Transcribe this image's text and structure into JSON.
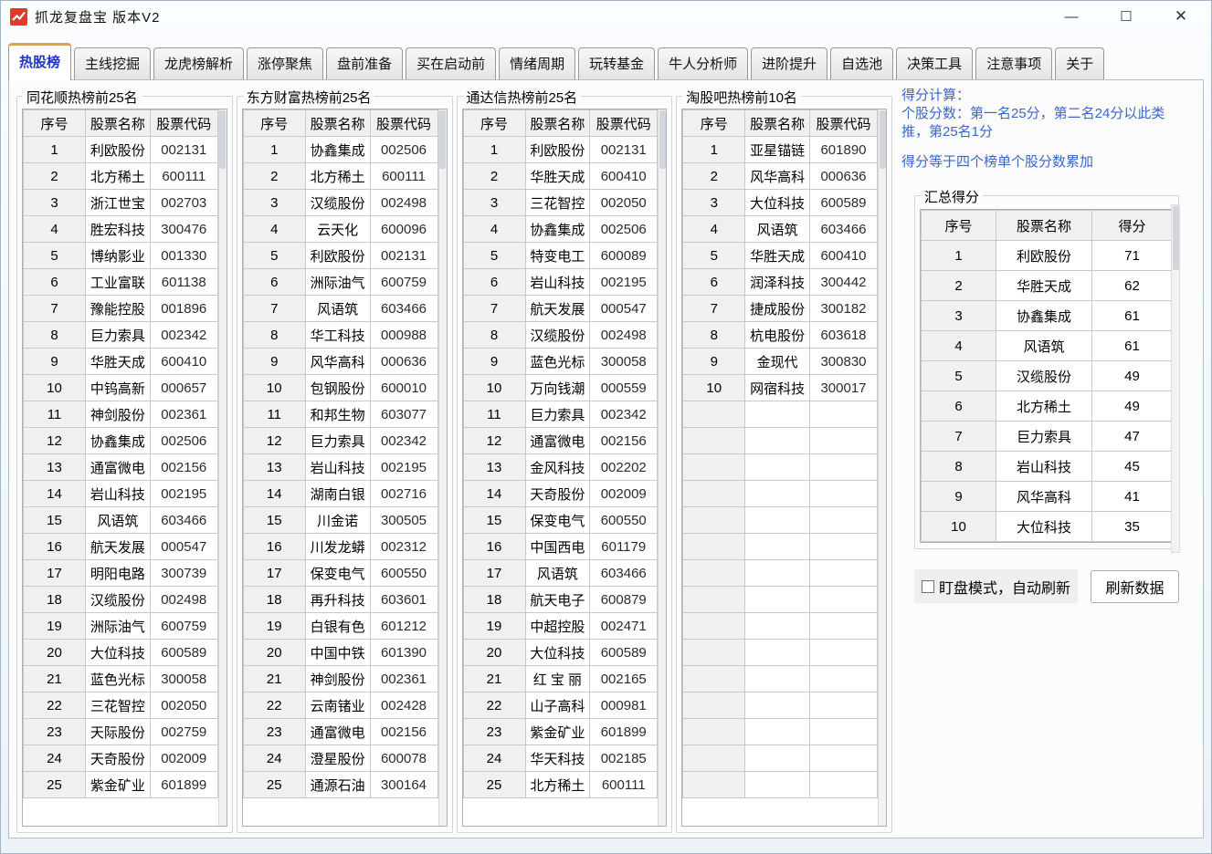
{
  "window": {
    "title": "抓龙复盘宝   版本V2",
    "controls": {
      "minimize": "—",
      "maximize": "☐",
      "close": "✕"
    }
  },
  "tabs": [
    {
      "label": "热股榜",
      "active": true
    },
    {
      "label": "主线挖掘",
      "active": false
    },
    {
      "label": "龙虎榜解析",
      "active": false
    },
    {
      "label": "涨停聚焦",
      "active": false
    },
    {
      "label": "盘前准备",
      "active": false
    },
    {
      "label": "买在启动前",
      "active": false
    },
    {
      "label": "情绪周期",
      "active": false
    },
    {
      "label": "玩转基金",
      "active": false
    },
    {
      "label": "牛人分析师",
      "active": false
    },
    {
      "label": "进阶提升",
      "active": false
    },
    {
      "label": "自选池",
      "active": false
    },
    {
      "label": "决策工具",
      "active": false
    },
    {
      "label": "注意事项",
      "active": false
    },
    {
      "label": "关于",
      "active": false
    }
  ],
  "boards": [
    {
      "title": "同花顺热榜前25名",
      "headers": [
        "序号",
        "股票名称",
        "股票代码"
      ],
      "row_slots": 25,
      "rows": [
        [
          "1",
          "利欧股份",
          "002131"
        ],
        [
          "2",
          "北方稀土",
          "600111"
        ],
        [
          "3",
          "浙江世宝",
          "002703"
        ],
        [
          "4",
          "胜宏科技",
          "300476"
        ],
        [
          "5",
          "博纳影业",
          "001330"
        ],
        [
          "6",
          "工业富联",
          "601138"
        ],
        [
          "7",
          "豫能控股",
          "001896"
        ],
        [
          "8",
          "巨力索具",
          "002342"
        ],
        [
          "9",
          "华胜天成",
          "600410"
        ],
        [
          "10",
          "中钨高新",
          "000657"
        ],
        [
          "11",
          "神剑股份",
          "002361"
        ],
        [
          "12",
          "协鑫集成",
          "002506"
        ],
        [
          "13",
          "通富微电",
          "002156"
        ],
        [
          "14",
          "岩山科技",
          "002195"
        ],
        [
          "15",
          "风语筑",
          "603466"
        ],
        [
          "16",
          "航天发展",
          "000547"
        ],
        [
          "17",
          "明阳电路",
          "300739"
        ],
        [
          "18",
          "汉缆股份",
          "002498"
        ],
        [
          "19",
          "洲际油气",
          "600759"
        ],
        [
          "20",
          "大位科技",
          "600589"
        ],
        [
          "21",
          "蓝色光标",
          "300058"
        ],
        [
          "22",
          "三花智控",
          "002050"
        ],
        [
          "23",
          "天际股份",
          "002759"
        ],
        [
          "24",
          "天奇股份",
          "002009"
        ],
        [
          "25",
          "紫金矿业",
          "601899"
        ]
      ]
    },
    {
      "title": "东方财富热榜前25名",
      "headers": [
        "序号",
        "股票名称",
        "股票代码"
      ],
      "row_slots": 25,
      "rows": [
        [
          "1",
          "协鑫集成",
          "002506"
        ],
        [
          "2",
          "北方稀土",
          "600111"
        ],
        [
          "3",
          "汉缆股份",
          "002498"
        ],
        [
          "4",
          "云天化",
          "600096"
        ],
        [
          "5",
          "利欧股份",
          "002131"
        ],
        [
          "6",
          "洲际油气",
          "600759"
        ],
        [
          "7",
          "风语筑",
          "603466"
        ],
        [
          "8",
          "华工科技",
          "000988"
        ],
        [
          "9",
          "风华高科",
          "000636"
        ],
        [
          "10",
          "包钢股份",
          "600010"
        ],
        [
          "11",
          "和邦生物",
          "603077"
        ],
        [
          "12",
          "巨力索具",
          "002342"
        ],
        [
          "13",
          "岩山科技",
          "002195"
        ],
        [
          "14",
          "湖南白银",
          "002716"
        ],
        [
          "15",
          "川金诺",
          "300505"
        ],
        [
          "16",
          "川发龙蟒",
          "002312"
        ],
        [
          "17",
          "保变电气",
          "600550"
        ],
        [
          "18",
          "再升科技",
          "603601"
        ],
        [
          "19",
          "白银有色",
          "601212"
        ],
        [
          "20",
          "中国中铁",
          "601390"
        ],
        [
          "21",
          "神剑股份",
          "002361"
        ],
        [
          "22",
          "云南锗业",
          "002428"
        ],
        [
          "23",
          "通富微电",
          "002156"
        ],
        [
          "24",
          "澄星股份",
          "600078"
        ],
        [
          "25",
          "通源石油",
          "300164"
        ]
      ]
    },
    {
      "title": "通达信热榜前25名",
      "headers": [
        "序号",
        "股票名称",
        "股票代码"
      ],
      "row_slots": 25,
      "rows": [
        [
          "1",
          "利欧股份",
          "002131"
        ],
        [
          "2",
          "华胜天成",
          "600410"
        ],
        [
          "3",
          "三花智控",
          "002050"
        ],
        [
          "4",
          "协鑫集成",
          "002506"
        ],
        [
          "5",
          "特变电工",
          "600089"
        ],
        [
          "6",
          "岩山科技",
          "002195"
        ],
        [
          "7",
          "航天发展",
          "000547"
        ],
        [
          "8",
          "汉缆股份",
          "002498"
        ],
        [
          "9",
          "蓝色光标",
          "300058"
        ],
        [
          "10",
          "万向钱潮",
          "000559"
        ],
        [
          "11",
          "巨力索具",
          "002342"
        ],
        [
          "12",
          "通富微电",
          "002156"
        ],
        [
          "13",
          "金风科技",
          "002202"
        ],
        [
          "14",
          "天奇股份",
          "002009"
        ],
        [
          "15",
          "保变电气",
          "600550"
        ],
        [
          "16",
          "中国西电",
          "601179"
        ],
        [
          "17",
          "风语筑",
          "603466"
        ],
        [
          "18",
          "航天电子",
          "600879"
        ],
        [
          "19",
          "中超控股",
          "002471"
        ],
        [
          "20",
          "大位科技",
          "600589"
        ],
        [
          "21",
          "红 宝 丽",
          "002165"
        ],
        [
          "22",
          "山子高科",
          "000981"
        ],
        [
          "23",
          "紫金矿业",
          "601899"
        ],
        [
          "24",
          "华天科技",
          "002185"
        ],
        [
          "25",
          "北方稀土",
          "600111"
        ]
      ]
    },
    {
      "title": "淘股吧热榜前10名",
      "headers": [
        "序号",
        "股票名称",
        "股票代码"
      ],
      "row_slots": 25,
      "rows": [
        [
          "1",
          "亚星锚链",
          "601890"
        ],
        [
          "2",
          "风华高科",
          "000636"
        ],
        [
          "3",
          "大位科技",
          "600589"
        ],
        [
          "4",
          "风语筑",
          "603466"
        ],
        [
          "5",
          "华胜天成",
          "600410"
        ],
        [
          "6",
          "润泽科技",
          "300442"
        ],
        [
          "7",
          "捷成股份",
          "300182"
        ],
        [
          "8",
          "杭电股份",
          "603618"
        ],
        [
          "9",
          "金现代",
          "300830"
        ],
        [
          "10",
          "网宿科技",
          "300017"
        ]
      ]
    }
  ],
  "score_panel": {
    "note1": "得分计算：",
    "note2": "个股分数：第一名25分，第二名24分以此类推，第25名1分",
    "note3": "得分等于四个榜单个股分数累加",
    "summary": {
      "title": "汇总得分",
      "headers": [
        "序号",
        "股票名称",
        "得分"
      ],
      "rows": [
        [
          "1",
          "利欧股份",
          "71"
        ],
        [
          "2",
          "华胜天成",
          "62"
        ],
        [
          "3",
          "协鑫集成",
          "61"
        ],
        [
          "4",
          "风语筑",
          "61"
        ],
        [
          "5",
          "汉缆股份",
          "49"
        ],
        [
          "6",
          "北方稀土",
          "49"
        ],
        [
          "7",
          "巨力索具",
          "47"
        ],
        [
          "8",
          "岩山科技",
          "45"
        ],
        [
          "9",
          "风华高科",
          "41"
        ],
        [
          "10",
          "大位科技",
          "35"
        ]
      ]
    },
    "watch_label": "盯盘模式，自动刷新",
    "refresh_label": "刷新数据"
  },
  "colors": {
    "accent_tab_top": "#e8a23c",
    "active_tab_text": "#1f35c5",
    "note_blue": "#3a66cc",
    "header_gray": "#f0f0f0",
    "grid_line": "#c9c9c9",
    "logo_red": "#e23a2a"
  }
}
